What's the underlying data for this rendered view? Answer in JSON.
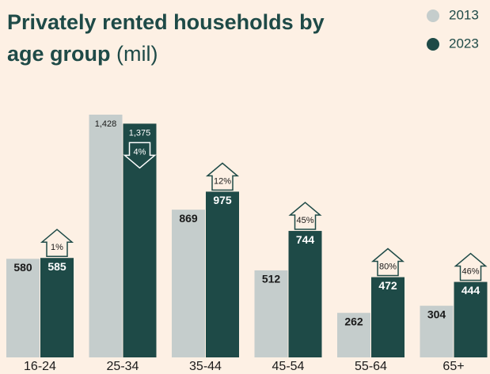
{
  "chart_data": {
    "type": "bar",
    "title": "Privately rented households by age group",
    "unit": "(mil)",
    "categories": [
      "16-24",
      "25-34",
      "35-44",
      "45-54",
      "55-64",
      "65+"
    ],
    "series": [
      {
        "name": "2013",
        "color": "#c5cdcc",
        "values": [
          580,
          1428,
          869,
          512,
          262,
          304
        ],
        "value_labels": [
          "580",
          "1,428",
          "869",
          "512",
          "262",
          "304"
        ]
      },
      {
        "name": "2023",
        "color": "#1e4a47",
        "values": [
          585,
          1375,
          975,
          744,
          472,
          444
        ],
        "value_labels": [
          "585",
          "1,375",
          "975",
          "744",
          "472",
          "444"
        ]
      }
    ],
    "annotations": [
      "1%",
      "4%",
      "12%",
      "45%",
      "80%",
      "46%"
    ],
    "annotation_directions": [
      "up",
      "down",
      "up",
      "up",
      "up",
      "up"
    ],
    "legend": "top-right"
  }
}
